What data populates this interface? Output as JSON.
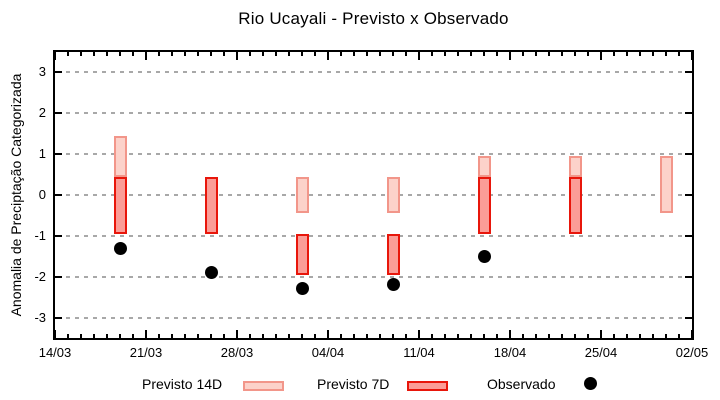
{
  "chart_data": {
    "type": "bar",
    "title": "Rio Ucayali - Previsto x Observado",
    "xlabel": "",
    "ylabel": "Anomalia de Preciptação Categorizada",
    "ylim": [
      -3.5,
      3.5
    ],
    "y_ticks": [
      3,
      2,
      1,
      0,
      -1,
      -2,
      -3
    ],
    "x_range_days": 49,
    "x_ticks": [
      {
        "day": 0,
        "label": "14/03"
      },
      {
        "day": 7,
        "label": "21/03"
      },
      {
        "day": 14,
        "label": "28/03"
      },
      {
        "day": 21,
        "label": "04/04"
      },
      {
        "day": 28,
        "label": "11/04"
      },
      {
        "day": 35,
        "label": "18/04"
      },
      {
        "day": 42,
        "label": "25/04"
      },
      {
        "day": 49,
        "label": "02/05"
      }
    ],
    "grid": "horizontal dashed gridlines at integer y values",
    "colors": {
      "previsto_14d_fill": "#fcd2ca",
      "previsto_14d_border": "#f2968a",
      "previsto_7d_fill": "#fb9d97",
      "previsto_7d_border": "#e8160b",
      "observado": "#000000",
      "gridline": "#a8a8a8"
    },
    "series": [
      {
        "name": "Previsto 14D",
        "type": "range_bar",
        "points": [
          {
            "day": 5,
            "date": "19/03",
            "from": 0.45,
            "to": 1.45
          },
          {
            "day": 19,
            "date": "02/04",
            "from": -0.45,
            "to": 0.45
          },
          {
            "day": 26,
            "date": "09/04",
            "from": -0.45,
            "to": 0.45
          },
          {
            "day": 33,
            "date": "16/04",
            "from": 0.45,
            "to": 0.95
          },
          {
            "day": 40,
            "date": "23/04",
            "from": 0.45,
            "to": 0.95
          },
          {
            "day": 47,
            "date": "30/04",
            "from": -0.45,
            "to": 0.95
          }
        ]
      },
      {
        "name": "Previsto 7D",
        "type": "range_bar",
        "points": [
          {
            "day": 5,
            "date": "19/03",
            "from": -0.95,
            "to": 0.45
          },
          {
            "day": 12,
            "date": "26/03",
            "from": -0.95,
            "to": 0.45
          },
          {
            "day": 19,
            "date": "02/04",
            "from": -1.95,
            "to": -0.95
          },
          {
            "day": 26,
            "date": "09/04",
            "from": -1.95,
            "to": -0.95
          },
          {
            "day": 33,
            "date": "16/04",
            "from": -0.95,
            "to": 0.45
          },
          {
            "day": 40,
            "date": "23/04",
            "from": -0.95,
            "to": 0.45
          }
        ]
      },
      {
        "name": "Observado",
        "type": "scatter",
        "points": [
          {
            "day": 5,
            "date": "19/03",
            "value": -1.3
          },
          {
            "day": 12,
            "date": "26/03",
            "value": -1.9
          },
          {
            "day": 19,
            "date": "02/04",
            "value": -2.3
          },
          {
            "day": 26,
            "date": "09/04",
            "value": -2.2
          },
          {
            "day": 33,
            "date": "16/04",
            "value": -1.5
          }
        ]
      }
    ],
    "legend": {
      "position": "bottom",
      "entries": [
        {
          "label": "Previsto 14D",
          "swatch": "light-pink-bar"
        },
        {
          "label": "Previsto 7D",
          "swatch": "red-bar"
        },
        {
          "label": "Observado",
          "swatch": "black-dot"
        }
      ]
    }
  }
}
